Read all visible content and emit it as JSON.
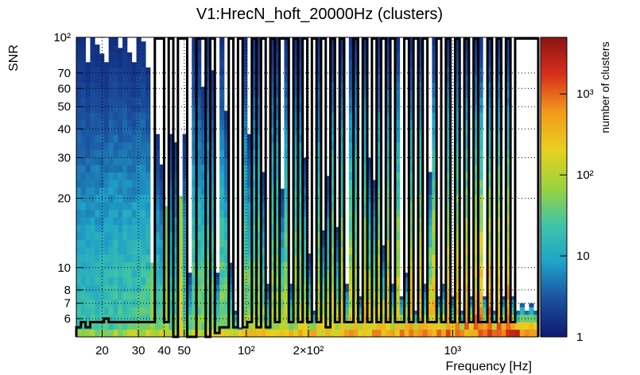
{
  "chart_data": {
    "type": "heatmap",
    "title": "V1:HrecN_hoft_20000Hz (clusters)",
    "xlabel": "Frequency [Hz]",
    "ylabel": "SNR",
    "zlabel": "number of clusters",
    "x_scale": "log",
    "y_scale": "log",
    "z_scale": "log",
    "xlim": [
      15,
      2600
    ],
    "ylim": [
      5,
      100
    ],
    "zlim": [
      1,
      5000
    ],
    "x_tick_labels": [
      {
        "value": 20,
        "label": "20"
      },
      {
        "value": 30,
        "label": "30"
      },
      {
        "value": 40,
        "label": "40"
      },
      {
        "value": 50,
        "label": "50"
      },
      {
        "value": 100,
        "label": "10²"
      },
      {
        "value": 200,
        "label": "2×10²"
      },
      {
        "value": 1000,
        "label": "10³"
      }
    ],
    "y_tick_labels": [
      {
        "value": 6,
        "label": "6"
      },
      {
        "value": 7,
        "label": "7"
      },
      {
        "value": 8,
        "label": "8"
      },
      {
        "value": 10,
        "label": "10"
      },
      {
        "value": 20,
        "label": "20"
      },
      {
        "value": 30,
        "label": "30"
      },
      {
        "value": 40,
        "label": "40"
      },
      {
        "value": 50,
        "label": "50"
      },
      {
        "value": 60,
        "label": "60"
      },
      {
        "value": 70,
        "label": "70"
      },
      {
        "value": 100,
        "label": "10²"
      }
    ],
    "z_tick_labels": [
      {
        "value": 1,
        "label": "1"
      },
      {
        "value": 10,
        "label": "10"
      },
      {
        "value": 100,
        "label": "10²"
      },
      {
        "value": 1000,
        "label": "10³"
      }
    ],
    "grid": true,
    "colormap": [
      "#0d1b6e",
      "#1b4f9e",
      "#1fa3c9",
      "#3fc5a6",
      "#9bd33c",
      "#e8d020",
      "#f29a1c",
      "#d8301a",
      "#8a1414"
    ],
    "n_freq_bins": 100,
    "max_snr": [
      100,
      100,
      78,
      100,
      93,
      85,
      78,
      100,
      100,
      90,
      100,
      86,
      78,
      100,
      96,
      74,
      10.5,
      38,
      28,
      18.5,
      38,
      35,
      20.5,
      38,
      9.5,
      100,
      100,
      61,
      100,
      72,
      9.5,
      100,
      48,
      10.5,
      6.5,
      5.5,
      100,
      38,
      100,
      100,
      26,
      8.5,
      100,
      100,
      22,
      100,
      8.5,
      100,
      100,
      30,
      11.5,
      6.5,
      100,
      14.5,
      25,
      100,
      15,
      100,
      8.5,
      100,
      100,
      7.5,
      100,
      30,
      24,
      100,
      12.5,
      100,
      8.5,
      100,
      7.5,
      9.5,
      100,
      6.5,
      100,
      8.5,
      26,
      100,
      7.5,
      8.5,
      100,
      7.5,
      100,
      6.5,
      100,
      7.5,
      100,
      100,
      7.5,
      100,
      6.5,
      100,
      7.5,
      100,
      7.5,
      6.5,
      7,
      6.5,
      7,
      6.5
    ],
    "peak_bins": [
      {
        "freq": 34.5,
        "level": 0.58
      },
      {
        "freq": 41.5,
        "level": 0.6
      },
      {
        "freq": 47.5,
        "level": 0.7
      }
    ],
    "outline_max_snr": [
      5.5,
      5.8,
      5.5,
      5.8,
      5.8,
      5.8,
      6,
      5.8,
      5.8,
      5.8,
      5.8,
      5.8,
      5.8,
      5.8,
      5.8,
      5.8,
      5.8,
      100,
      100,
      5.8,
      100,
      5,
      100,
      100,
      5,
      5,
      100,
      100,
      5,
      100,
      5.2,
      5.5,
      5.5,
      100,
      5.5,
      100,
      5.5,
      5.8,
      100,
      5.5,
      100,
      5.5,
      100,
      5.8,
      100,
      100,
      5.8,
      100,
      5.8,
      100,
      5.8,
      100,
      5.8,
      100,
      5.5,
      100,
      5.8,
      100,
      5.8,
      5.8,
      100,
      5.8,
      100,
      5.8,
      100,
      5.8,
      100,
      5.8,
      100,
      5.8,
      5.8,
      100,
      5.8,
      100,
      5.8,
      100,
      5.8,
      5.8,
      100,
      5.8,
      100,
      5.8,
      100,
      5.8,
      100,
      5.8,
      100,
      5.8,
      5.8,
      100,
      5.8,
      100,
      5.8,
      100,
      5.8,
      100,
      100,
      100,
      100,
      100
    ]
  }
}
